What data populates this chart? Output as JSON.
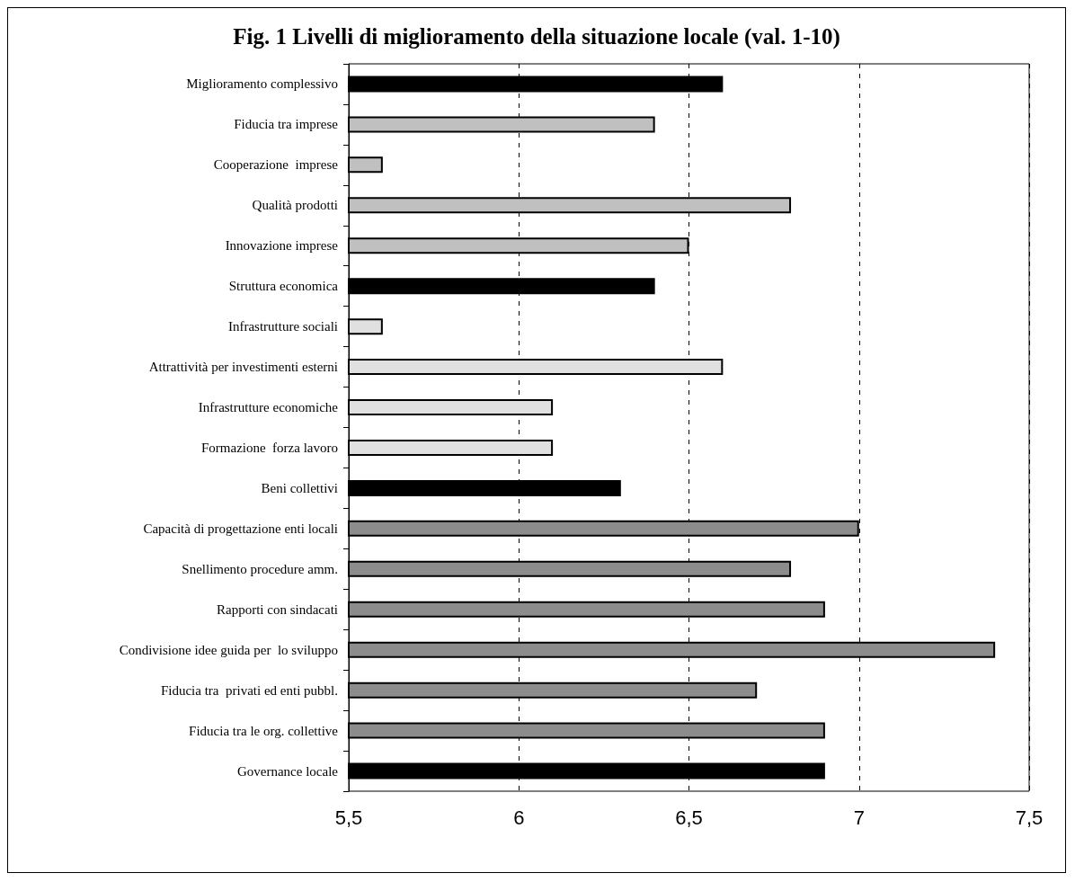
{
  "chart_data": {
    "type": "bar",
    "orientation": "horizontal",
    "title": "Fig. 1 Livelli di miglioramento della situazione locale (val. 1-10)",
    "categories": [
      "Miglioramento complessivo",
      "Fiducia tra imprese",
      "Cooperazione  imprese",
      "Qualità prodotti",
      "Innovazione imprese",
      "Struttura economica",
      "Infrastrutture sociali",
      "Attrattività per investimenti esterni",
      "Infrastrutture economiche",
      "Formazione  forza lavoro",
      "Beni collettivi",
      "Capacità di progettazione enti locali",
      "Snellimento procedure amm.",
      "Rapporti con sindacati",
      "Condivisione idee guida per  lo sviluppo",
      "Fiducia tra  privati ed enti pubbl.",
      "Fiducia tra le org. collettive",
      "Governance locale"
    ],
    "values": [
      6.6,
      6.4,
      5.6,
      6.8,
      6.5,
      6.4,
      5.6,
      6.6,
      6.1,
      6.1,
      6.3,
      7.0,
      6.8,
      6.9,
      7.4,
      6.7,
      6.9,
      6.9
    ],
    "colors": [
      "#000000",
      "#c0c0c0",
      "#c0c0c0",
      "#c0c0c0",
      "#c0c0c0",
      "#000000",
      "#e0e0e0",
      "#e0e0e0",
      "#e0e0e0",
      "#e0e0e0",
      "#000000",
      "#8c8c8c",
      "#8c8c8c",
      "#8c8c8c",
      "#8c8c8c",
      "#8c8c8c",
      "#8c8c8c",
      "#000000"
    ],
    "xlim": [
      5.5,
      7.5
    ],
    "xticks": [
      {
        "value": 5.5,
        "label": "5,5"
      },
      6,
      {
        "value": 6.5,
        "label": "6,5"
      },
      7,
      {
        "value": 7.5,
        "label": "7,5"
      }
    ],
    "grid": "x"
  }
}
